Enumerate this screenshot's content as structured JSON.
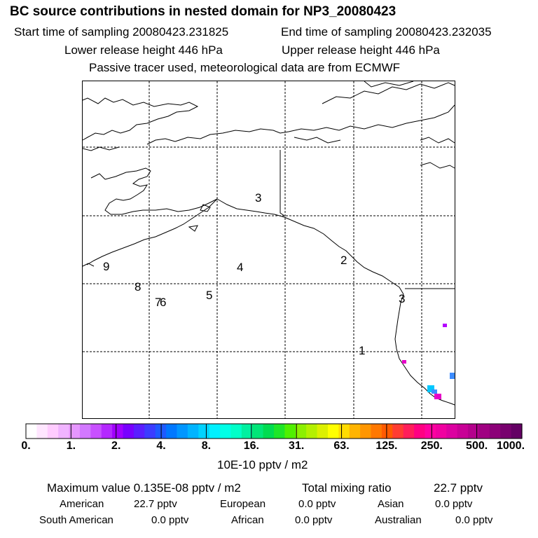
{
  "header": {
    "title": "BC  source contributions in nested domain for NP3_20080423",
    "start_time_label": "Start time of sampling 20080423.231825",
    "end_time_label": "End time of sampling 20080423.232035",
    "lower_height_label": "Lower release height  446 hPa",
    "upper_height_label": "Upper release height  446 hPa",
    "tracer_note": "Passive tracer used, meteorological data are from ECMWF"
  },
  "map": {
    "region_labels": [
      "1",
      "2",
      "3",
      "3",
      "4",
      "5",
      "6",
      "7",
      "8",
      "9"
    ],
    "grid_lines": "dashed",
    "plume_colors": [
      "#b400ff",
      "#e600c8",
      "#3c8cff",
      "#00c8ff"
    ]
  },
  "colorbar": {
    "ticks": [
      "0.",
      "1.",
      "2.",
      "4.",
      "8.",
      "16.",
      "31.",
      "63.",
      "125.",
      "250.",
      "500.",
      "1000."
    ],
    "colors": [
      "#ffffff",
      "#ffe6ff",
      "#ffccff",
      "#f0b4ff",
      "#e696ff",
      "#d278ff",
      "#c850ff",
      "#b428ff",
      "#a000ff",
      "#7800ff",
      "#5a1eff",
      "#3c3cff",
      "#1e5aff",
      "#0078ff",
      "#0096ff",
      "#00b4ff",
      "#00d2ff",
      "#00f0ff",
      "#00ffe6",
      "#00ffc8",
      "#00f0a0",
      "#00e678",
      "#00dc50",
      "#1ee628",
      "#50f000",
      "#8cf000",
      "#b4f000",
      "#dcf000",
      "#ffff00",
      "#ffdc00",
      "#ffb400",
      "#ff9600",
      "#ff7800",
      "#ff5a00",
      "#ff3c32",
      "#ff1e5a",
      "#ff0082",
      "#ff00a0",
      "#f000a0",
      "#dc00a0",
      "#c80096",
      "#b4008c",
      "#a00082",
      "#8c0078",
      "#78006e",
      "#640064"
    ],
    "unit_label": "10E-10 pptv / m2"
  },
  "stats": {
    "max_value_label": "Maximum value  0.135E-08 pptv / m2",
    "total_mixing_label": "Total mixing ratio",
    "total_mixing_value": "22.7 pptv",
    "regions": [
      {
        "name": "American",
        "value": "22.7 pptv"
      },
      {
        "name": "European",
        "value": "0.0 pptv"
      },
      {
        "name": "Asian",
        "value": "0.0 pptv"
      },
      {
        "name": "South American",
        "value": "0.0 pptv"
      },
      {
        "name": "African",
        "value": "0.0 pptv"
      },
      {
        "name": "Australian",
        "value": "0.0 pptv"
      }
    ]
  }
}
